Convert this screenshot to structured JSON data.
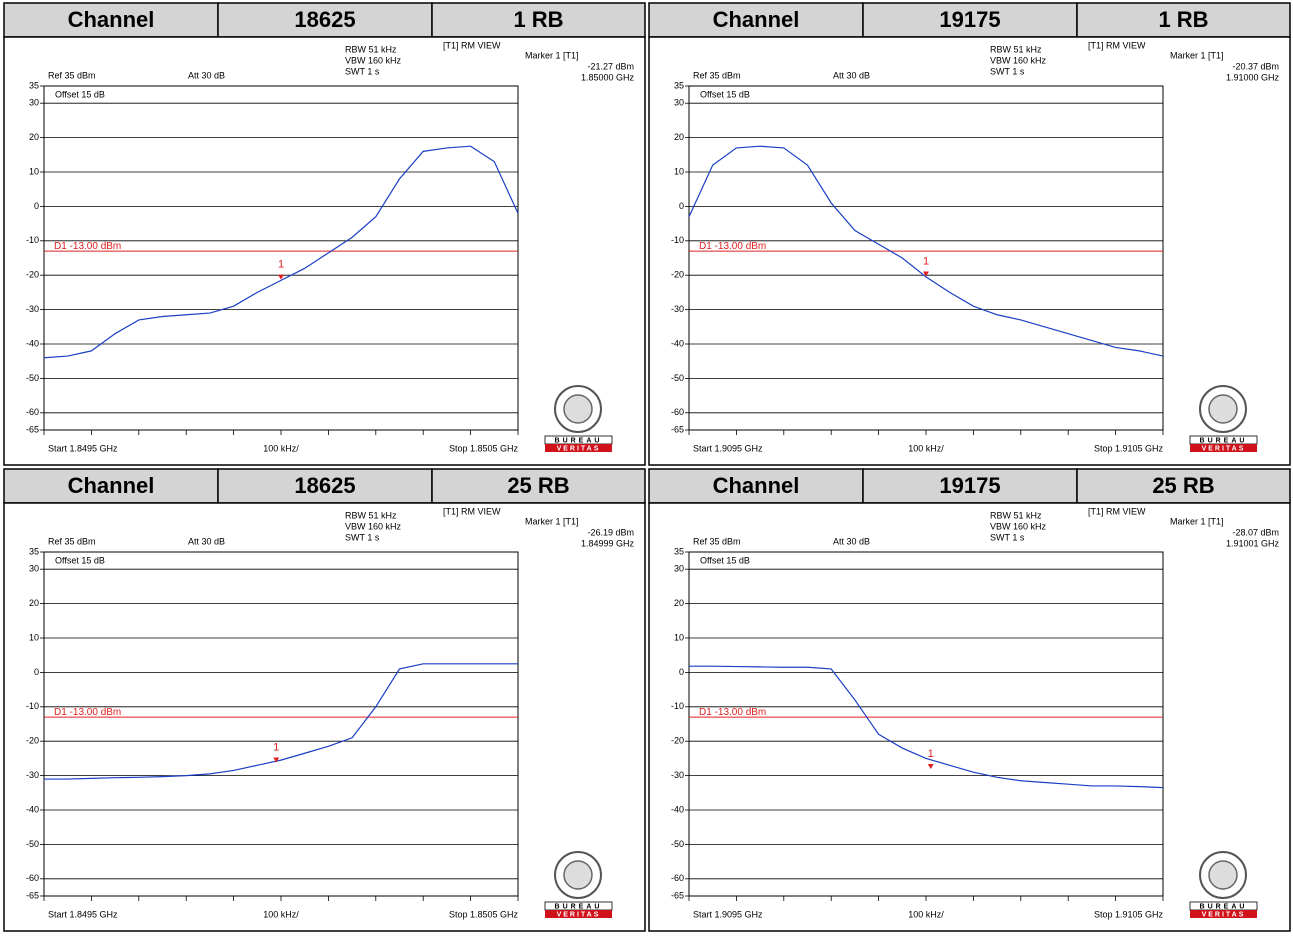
{
  "logo": {
    "line1": "BUREAU",
    "line2": "VERITAS"
  },
  "chart_data": [
    {
      "type": "line",
      "header": [
        "Channel",
        "18625",
        "1 RB"
      ],
      "annotations": [
        "Ref 35 dBm",
        "Att 30 dB",
        "RBW 51 kHz",
        "VBW 160 kHz",
        "SWT 1 s",
        "[T1] RM VIEW",
        "Offset 15 dB"
      ],
      "x_start_label": "Start 1.8495 GHz",
      "x_div_label": "100 kHz/",
      "x_stop_label": "Stop 1.8505 GHz",
      "marker": {
        "label": "Marker 1 [T1]",
        "id": "1",
        "value": -21.27,
        "value_label": "-21.27 dBm",
        "x": 1.85,
        "x_label": "1.85000 GHz"
      },
      "limit": {
        "value": -13,
        "label": "D1 -13.00 dBm"
      },
      "color": "#1a3fc4",
      "xlim": [
        1.8495,
        1.8505
      ],
      "ylim": [
        -65,
        35
      ],
      "yticks": [
        35,
        30,
        20,
        10,
        0,
        -10,
        -20,
        -30,
        -40,
        -50,
        -60,
        -65
      ],
      "x": [
        1.8495,
        1.84955,
        1.8496,
        1.84965,
        1.8497,
        1.84975,
        1.8498,
        1.84985,
        1.8499,
        1.84995,
        1.85,
        1.85005,
        1.8501,
        1.85015,
        1.8502,
        1.85025,
        1.8503,
        1.85035,
        1.8504,
        1.85045,
        1.8505
      ],
      "values": [
        -44,
        -43.5,
        -42,
        -37,
        -33,
        -32,
        -31.5,
        -31,
        -29,
        -25,
        -21.5,
        -18,
        -13.5,
        -9,
        -3,
        8,
        16,
        17,
        17.5,
        13,
        -2
      ]
    },
    {
      "type": "line",
      "header": [
        "Channel",
        "19175",
        "1 RB"
      ],
      "annotations": [
        "Ref 35 dBm",
        "Att 30 dB",
        "RBW 51 kHz",
        "VBW 160 kHz",
        "SWT 1 s",
        "[T1] RM VIEW",
        "Offset 15 dB"
      ],
      "x_start_label": "Start 1.9095 GHz",
      "x_div_label": "100 kHz/",
      "x_stop_label": "Stop 1.9105 GHz",
      "marker": {
        "label": "Marker 1 [T1]",
        "id": "1",
        "value": -20.37,
        "value_label": "-20.37 dBm",
        "x": 1.91,
        "x_label": "1.91000 GHz"
      },
      "limit": {
        "value": -13,
        "label": "D1 -13.00 dBm"
      },
      "color": "#1a3fc4",
      "xlim": [
        1.9095,
        1.9105
      ],
      "ylim": [
        -65,
        35
      ],
      "yticks": [
        35,
        30,
        20,
        10,
        0,
        -10,
        -20,
        -30,
        -40,
        -50,
        -60,
        -65
      ],
      "x": [
        1.9095,
        1.90955,
        1.9096,
        1.90965,
        1.9097,
        1.90975,
        1.9098,
        1.90985,
        1.9099,
        1.90995,
        1.91,
        1.91005,
        1.9101,
        1.91015,
        1.9102,
        1.91025,
        1.9103,
        1.91035,
        1.9104,
        1.91045,
        1.9105
      ],
      "values": [
        -3,
        12,
        17,
        17.5,
        17,
        12,
        1,
        -7,
        -11,
        -15,
        -20.5,
        -25,
        -29,
        -31.5,
        -33,
        -35,
        -37,
        -39,
        -41,
        -42,
        -43.5
      ]
    },
    {
      "type": "line",
      "header": [
        "Channel",
        "18625",
        "25 RB"
      ],
      "annotations": [
        "Ref 35 dBm",
        "Att 30 dB",
        "RBW 51 kHz",
        "VBW 160 kHz",
        "SWT 1 s",
        "[T1] RM VIEW",
        "Offset 15 dB"
      ],
      "x_start_label": "Start 1.8495 GHz",
      "x_div_label": "100 kHz/",
      "x_stop_label": "Stop 1.8505 GHz",
      "marker": {
        "label": "Marker 1 [T1]",
        "id": "1",
        "value": -26.19,
        "value_label": "-26.19 dBm",
        "x": 1.84999,
        "x_label": "1.84999 GHz"
      },
      "limit": {
        "value": -13,
        "label": "D1 -13.00 dBm"
      },
      "color": "#1a3fc4",
      "xlim": [
        1.8495,
        1.8505
      ],
      "ylim": [
        -65,
        35
      ],
      "yticks": [
        35,
        30,
        20,
        10,
        0,
        -10,
        -20,
        -30,
        -40,
        -50,
        -60,
        -65
      ],
      "x": [
        1.8495,
        1.84955,
        1.8496,
        1.84965,
        1.8497,
        1.84975,
        1.8498,
        1.84985,
        1.8499,
        1.84995,
        1.85,
        1.85005,
        1.8501,
        1.85015,
        1.8502,
        1.85025,
        1.8503,
        1.85035,
        1.8504,
        1.85045,
        1.8505
      ],
      "values": [
        -31,
        -31,
        -30.8,
        -30.6,
        -30.5,
        -30.3,
        -30,
        -29.5,
        -28.5,
        -27,
        -25.5,
        -23.5,
        -21.5,
        -19,
        -10,
        1,
        2.5,
        2.5,
        2.5,
        2.5,
        2.5
      ]
    },
    {
      "type": "line",
      "header": [
        "Channel",
        "19175",
        "25 RB"
      ],
      "annotations": [
        "Ref 35 dBm",
        "Att 30 dB",
        "RBW 51 kHz",
        "VBW 160 kHz",
        "SWT 1 s",
        "[T1] RM VIEW",
        "Offset 15 dB"
      ],
      "x_start_label": "Start 1.9095 GHz",
      "x_div_label": "100 kHz/",
      "x_stop_label": "Stop 1.9105 GHz",
      "marker": {
        "label": "Marker 1 [T1]",
        "id": "1",
        "value": -28.07,
        "value_label": "-28.07 dBm",
        "x": 1.91001,
        "x_label": "1.91001 GHz"
      },
      "limit": {
        "value": -13,
        "label": "D1 -13.00 dBm"
      },
      "color": "#1a3fc4",
      "xlim": [
        1.9095,
        1.9105
      ],
      "ylim": [
        -65,
        35
      ],
      "yticks": [
        35,
        30,
        20,
        10,
        0,
        -10,
        -20,
        -30,
        -40,
        -50,
        -60,
        -65
      ],
      "x": [
        1.9095,
        1.90955,
        1.9096,
        1.90965,
        1.9097,
        1.90975,
        1.9098,
        1.90985,
        1.9099,
        1.90995,
        1.91,
        1.91005,
        1.9101,
        1.91015,
        1.9102,
        1.91025,
        1.9103,
        1.91035,
        1.9104,
        1.91045,
        1.9105
      ],
      "values": [
        1.8,
        1.8,
        1.7,
        1.6,
        1.5,
        1.5,
        1,
        -8,
        -18,
        -22,
        -25,
        -27,
        -29,
        -30.5,
        -31.5,
        -32,
        -32.5,
        -33,
        -33,
        -33.2,
        -33.5
      ]
    }
  ]
}
